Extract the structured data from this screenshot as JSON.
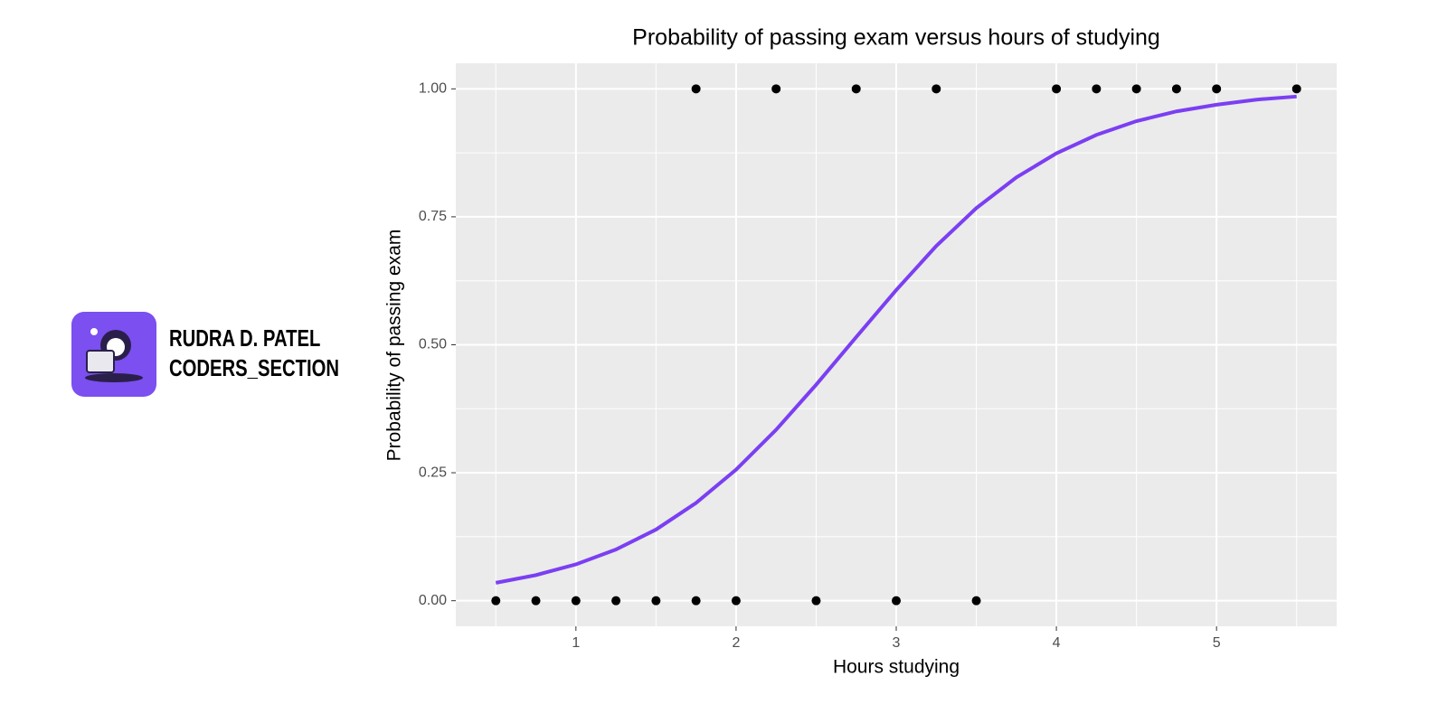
{
  "chart_data": {
    "type": "scatter",
    "title": "Probability of passing exam versus hours of studying",
    "x_label": "Hours studying",
    "y_label": "Probability of passing exam",
    "points": {
      "color": "#000000",
      "x": [
        0.5,
        0.75,
        1,
        1.25,
        1.5,
        1.75,
        1.75,
        2,
        2.25,
        2.5,
        2.75,
        3,
        3.25,
        3.5,
        4,
        4.25,
        4.5,
        4.75,
        5,
        5.5
      ],
      "values": [
        0,
        0,
        0,
        0,
        0,
        0,
        1,
        0,
        1,
        0,
        1,
        0,
        1,
        0,
        1,
        1,
        1,
        1,
        1,
        1
      ]
    },
    "curve": {
      "color": "#7b3ff2",
      "x": [
        0.5,
        0.75,
        1,
        1.25,
        1.5,
        1.75,
        2,
        2.25,
        2.5,
        2.75,
        3,
        3.25,
        3.5,
        3.75,
        4,
        4.25,
        4.5,
        4.75,
        5,
        5.25,
        5.5
      ],
      "values": [
        0.035,
        0.05,
        0.071,
        0.1,
        0.139,
        0.191,
        0.256,
        0.334,
        0.422,
        0.515,
        0.607,
        0.693,
        0.767,
        0.827,
        0.874,
        0.91,
        0.937,
        0.956,
        0.969,
        0.979,
        0.985
      ]
    },
    "xlim": [
      0.25,
      5.75
    ],
    "ylim": [
      -0.05,
      1.05
    ],
    "xticks": [
      1,
      2,
      3,
      4,
      5
    ],
    "yticks": [
      {
        "value": 0,
        "label": "0.00"
      },
      {
        "value": 0.25,
        "label": "0.25"
      },
      {
        "value": 0.5,
        "label": "0.50"
      },
      {
        "value": 0.75,
        "label": "0.75"
      },
      {
        "value": 1,
        "label": "1.00"
      }
    ],
    "x_minor_ticks": [
      0.5,
      1.5,
      2.5,
      3.5,
      4.5,
      5.5
    ],
    "y_minor_ticks": [
      0.125,
      0.375,
      0.625,
      0.875
    ],
    "grid": true
  },
  "logo": {
    "color": "#7b4ff0",
    "lines": [
      "RUDRA D. PATEL",
      "CODERS_SECTION"
    ]
  }
}
